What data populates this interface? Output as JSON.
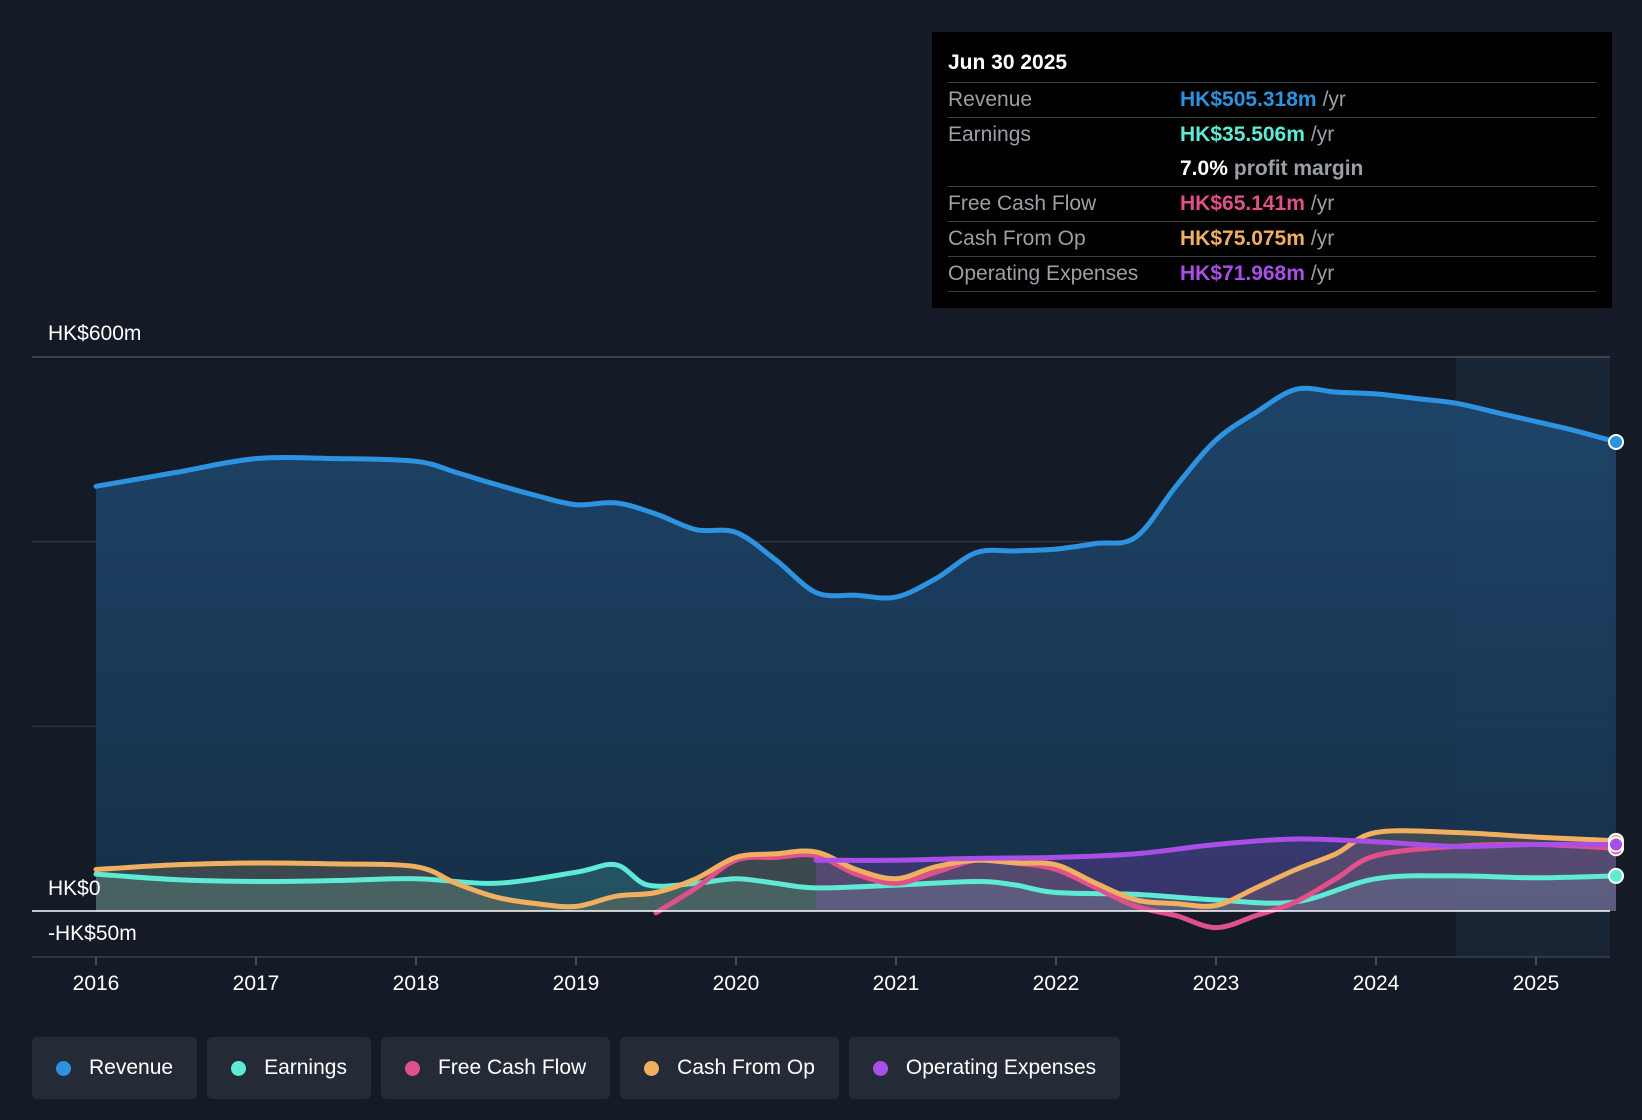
{
  "tooltip": {
    "date": "Jun 30 2025",
    "rows": [
      {
        "label": "Revenue",
        "value": "HK$505.318m",
        "unit": "/yr",
        "color": "#2d93e0"
      },
      {
        "label": "Earnings",
        "value": "HK$35.506m",
        "unit": "/yr",
        "color": "#5eead4"
      },
      {
        "label": "",
        "value": "7.0%",
        "unit": "profit margin",
        "color": "#ffffff"
      },
      {
        "label": "Free Cash Flow",
        "value": "HK$65.141m",
        "unit": "/yr",
        "color": "#e0508a"
      },
      {
        "label": "Cash From Op",
        "value": "HK$75.075m",
        "unit": "/yr",
        "color": "#f0b060"
      },
      {
        "label": "Operating Expenses",
        "value": "HK$71.968m",
        "unit": "/yr",
        "color": "#a94fe8"
      }
    ]
  },
  "legend": [
    {
      "label": "Revenue",
      "color": "#2d93e0"
    },
    {
      "label": "Earnings",
      "color": "#5eead4"
    },
    {
      "label": "Free Cash Flow",
      "color": "#e0508a"
    },
    {
      "label": "Cash From Op",
      "color": "#f0b060"
    },
    {
      "label": "Operating Expenses",
      "color": "#a94fe8"
    }
  ],
  "chart_data": {
    "type": "area",
    "title": "",
    "ylim": [
      -50,
      600
    ],
    "y_tick_labels": {
      "top": "HK$600m",
      "zero": "HK$0",
      "bottom": "-HK$50m"
    },
    "xlim": [
      2015.6,
      2025.5
    ],
    "x_ticks": [
      "2016",
      "2017",
      "2018",
      "2019",
      "2020",
      "2021",
      "2022",
      "2023",
      "2024",
      "2025"
    ],
    "forecast_start": 2024.5,
    "series": [
      {
        "name": "Revenue",
        "color": "#2d93e0",
        "fill": true,
        "points": [
          [
            2016.0,
            460
          ],
          [
            2016.5,
            475
          ],
          [
            2017.0,
            490
          ],
          [
            2017.5,
            490
          ],
          [
            2018.0,
            487
          ],
          [
            2018.25,
            475
          ],
          [
            2018.5,
            462
          ],
          [
            2018.75,
            450
          ],
          [
            2019.0,
            440
          ],
          [
            2019.25,
            442
          ],
          [
            2019.5,
            430
          ],
          [
            2019.75,
            413
          ],
          [
            2020.0,
            410
          ],
          [
            2020.25,
            380
          ],
          [
            2020.5,
            345
          ],
          [
            2020.75,
            342
          ],
          [
            2021.0,
            340
          ],
          [
            2021.25,
            360
          ],
          [
            2021.5,
            388
          ],
          [
            2021.75,
            390
          ],
          [
            2022.0,
            392
          ],
          [
            2022.25,
            398
          ],
          [
            2022.5,
            405
          ],
          [
            2022.75,
            460
          ],
          [
            2023.0,
            510
          ],
          [
            2023.25,
            540
          ],
          [
            2023.5,
            565
          ],
          [
            2023.75,
            562
          ],
          [
            2024.0,
            560
          ],
          [
            2024.25,
            555
          ],
          [
            2024.5,
            550
          ],
          [
            2024.75,
            540
          ],
          [
            2025.0,
            530
          ],
          [
            2025.25,
            520
          ],
          [
            2025.5,
            508
          ]
        ]
      },
      {
        "name": "Earnings",
        "color": "#5eead4",
        "fill": true,
        "points": [
          [
            2016.0,
            40
          ],
          [
            2016.5,
            34
          ],
          [
            2017.0,
            32
          ],
          [
            2017.5,
            33
          ],
          [
            2018.0,
            35
          ],
          [
            2018.5,
            30
          ],
          [
            2019.0,
            42
          ],
          [
            2019.25,
            50
          ],
          [
            2019.45,
            28
          ],
          [
            2019.75,
            30
          ],
          [
            2020.0,
            35
          ],
          [
            2020.25,
            30
          ],
          [
            2020.5,
            25
          ],
          [
            2021.0,
            28
          ],
          [
            2021.5,
            32
          ],
          [
            2021.75,
            28
          ],
          [
            2022.0,
            20
          ],
          [
            2022.5,
            18
          ],
          [
            2023.0,
            12
          ],
          [
            2023.5,
            10
          ],
          [
            2024.0,
            35
          ],
          [
            2024.5,
            38
          ],
          [
            2025.0,
            36
          ],
          [
            2025.5,
            38
          ]
        ]
      },
      {
        "name": "Free Cash Flow",
        "color": "#e0508a",
        "fill": false,
        "points": [
          [
            2019.5,
            -2
          ],
          [
            2019.75,
            25
          ],
          [
            2020.0,
            55
          ],
          [
            2020.25,
            58
          ],
          [
            2020.5,
            60
          ],
          [
            2020.75,
            40
          ],
          [
            2021.0,
            30
          ],
          [
            2021.25,
            42
          ],
          [
            2021.5,
            55
          ],
          [
            2021.75,
            52
          ],
          [
            2022.0,
            45
          ],
          [
            2022.25,
            25
          ],
          [
            2022.5,
            5
          ],
          [
            2022.75,
            -5
          ],
          [
            2023.0,
            -18
          ],
          [
            2023.25,
            -5
          ],
          [
            2023.5,
            10
          ],
          [
            2023.75,
            35
          ],
          [
            2024.0,
            60
          ],
          [
            2024.5,
            70
          ],
          [
            2025.0,
            72
          ],
          [
            2025.5,
            68
          ]
        ]
      },
      {
        "name": "Cash From Op",
        "color": "#f0b060",
        "fill": true,
        "points": [
          [
            2016.0,
            45
          ],
          [
            2016.5,
            50
          ],
          [
            2017.0,
            52
          ],
          [
            2017.5,
            51
          ],
          [
            2018.0,
            48
          ],
          [
            2018.25,
            30
          ],
          [
            2018.5,
            15
          ],
          [
            2018.75,
            8
          ],
          [
            2019.0,
            5
          ],
          [
            2019.25,
            16
          ],
          [
            2019.5,
            20
          ],
          [
            2019.75,
            35
          ],
          [
            2020.0,
            58
          ],
          [
            2020.25,
            62
          ],
          [
            2020.5,
            64
          ],
          [
            2020.75,
            45
          ],
          [
            2021.0,
            35
          ],
          [
            2021.25,
            48
          ],
          [
            2021.5,
            55
          ],
          [
            2021.75,
            52
          ],
          [
            2022.0,
            50
          ],
          [
            2022.25,
            30
          ],
          [
            2022.5,
            12
          ],
          [
            2022.75,
            8
          ],
          [
            2023.0,
            6
          ],
          [
            2023.25,
            25
          ],
          [
            2023.5,
            45
          ],
          [
            2023.75,
            62
          ],
          [
            2024.0,
            85
          ],
          [
            2024.5,
            85
          ],
          [
            2025.0,
            80
          ],
          [
            2025.5,
            76
          ]
        ]
      },
      {
        "name": "Operating Expenses",
        "color": "#a94fe8",
        "fill": true,
        "points": [
          [
            2020.5,
            55
          ],
          [
            2021.0,
            55
          ],
          [
            2021.5,
            57
          ],
          [
            2022.0,
            58
          ],
          [
            2022.5,
            62
          ],
          [
            2023.0,
            72
          ],
          [
            2023.5,
            78
          ],
          [
            2024.0,
            75
          ],
          [
            2024.5,
            70
          ],
          [
            2025.0,
            72
          ],
          [
            2025.5,
            72
          ]
        ]
      }
    ]
  }
}
